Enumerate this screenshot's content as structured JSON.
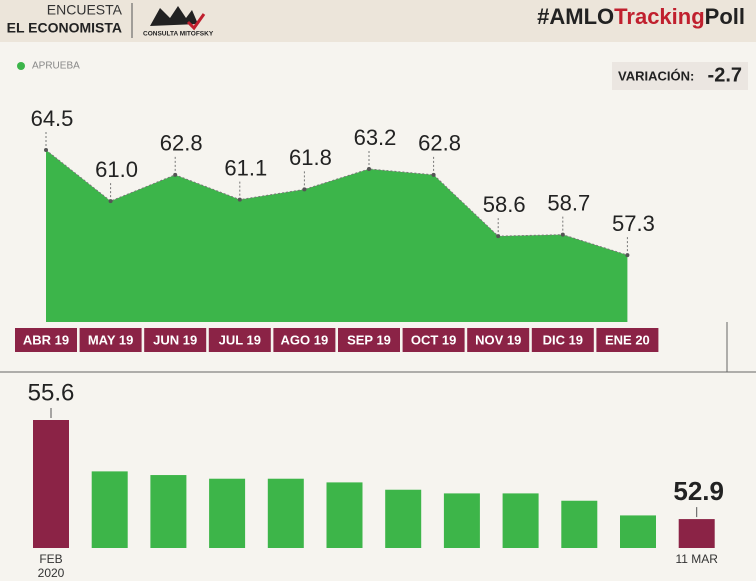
{
  "header": {
    "survey": "ENCUESTA",
    "publisher": "EL ECONOMISTA",
    "logo": "CONSULTA MITOFSKY",
    "hashtag_prefix": "#AMLO",
    "hashtag_accent": "Tracking",
    "hashtag_suffix": "Poll"
  },
  "variation": {
    "label": "VARIACIÓN:",
    "value": -2.7
  },
  "chart_data": [
    {
      "type": "area",
      "categories": [
        "ABR 19",
        "MAY 19",
        "JUN 19",
        "JUL 19",
        "AGO 19",
        "SEP 19",
        "OCT 19",
        "NOV 19",
        "DIC 19",
        "ENE 20"
      ],
      "series": [
        {
          "name": "APRUEBA",
          "color": "#3cb54a",
          "values": [
            64.5,
            61.0,
            62.8,
            61.1,
            61.8,
            63.2,
            62.8,
            58.6,
            58.7,
            57.3
          ]
        }
      ],
      "value_labels": [
        "64.5",
        "61.0",
        "62.8",
        "61.1",
        "61.8",
        "63.2",
        "62.8",
        "58.6",
        "58.7",
        "57.3"
      ],
      "legend": "top-left"
    },
    {
      "type": "bar",
      "categories": [
        "FEB 2020",
        null,
        null,
        null,
        null,
        null,
        null,
        null,
        null,
        null,
        null,
        "11 MAR"
      ],
      "values": [
        55.6,
        54.2,
        54.1,
        54.0,
        54.0,
        53.9,
        53.7,
        53.6,
        53.6,
        53.4,
        53.0,
        52.9
      ],
      "value_labels": [
        "55.6",
        null,
        null,
        null,
        null,
        null,
        null,
        null,
        null,
        null,
        null,
        "52.9"
      ],
      "colors": [
        "#8b2346",
        "#3db549",
        "#3db549",
        "#3db549",
        "#3db549",
        "#3db549",
        "#3db549",
        "#3db549",
        "#3db549",
        "#3db549",
        "#3db549",
        "#8b2346"
      ]
    }
  ]
}
